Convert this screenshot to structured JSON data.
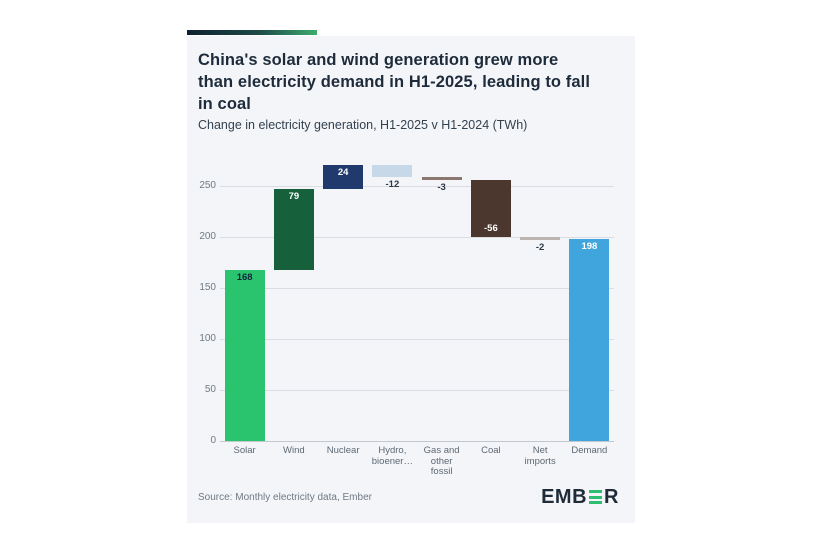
{
  "card": {
    "title_lines": [
      "China's solar and wind generation grew more",
      "than electricity demand in H1-2025, leading to fall",
      "in coal"
    ],
    "subtitle": "Change in electricity generation, H1-2025 v H1-2024 (TWh)",
    "source": "Source: Monthly electricity data, Ember",
    "logo": {
      "part1": "EMB",
      "part2": "R",
      "navy": "#1f2b39",
      "green": "#2dbe70"
    },
    "accent_gradient": [
      "#0f2030",
      "#3dab6e"
    ]
  },
  "chart_data": {
    "type": "bar",
    "subtype": "waterfall",
    "title": "China's solar and wind generation grew more than electricity demand in H1-2025, leading to fall in coal",
    "subtitle": "Change in electricity generation, H1-2025 v H1-2024 (TWh)",
    "xlabel": "",
    "ylabel": "TWh",
    "ylim": [
      0,
      280
    ],
    "grid": true,
    "y_ticks": [
      0,
      50,
      100,
      150,
      200,
      250
    ],
    "categories": [
      "Solar",
      "Wind",
      "Nuclear",
      "Hydro, bioener…",
      "Gas and other fossil",
      "Coal",
      "Net imports",
      "Demand"
    ],
    "values": [
      168,
      79,
      24,
      -12,
      -3,
      -56,
      -2,
      198
    ],
    "bars": [
      {
        "category_lines": [
          "Solar"
        ],
        "value": 168,
        "from": 0,
        "to": 168,
        "color": "#29c46d",
        "label": "168",
        "label_color": "#14243e",
        "label_pos": "inside-top"
      },
      {
        "category_lines": [
          "Wind"
        ],
        "value": 79,
        "from": 168,
        "to": 247,
        "color": "#16613b",
        "label": "79",
        "label_color": "#ffffff",
        "label_pos": "inside-top"
      },
      {
        "category_lines": [
          "Nuclear"
        ],
        "value": 24,
        "from": 247,
        "to": 271,
        "color": "#203a6d",
        "label": "24",
        "label_color": "#ffffff",
        "label_pos": "inside-top"
      },
      {
        "category_lines": [
          "Hydro,",
          "bioener…"
        ],
        "value": -12,
        "from": 271,
        "to": 259,
        "color": "#c7d9e9",
        "label": "-12",
        "label_color": "#2a3744",
        "label_pos": "below"
      },
      {
        "category_lines": [
          "Gas and",
          "other",
          "fossil"
        ],
        "value": -3,
        "from": 259,
        "to": 256,
        "color": "#8b7670",
        "label": "-3",
        "label_color": "#2a3744",
        "label_pos": "below"
      },
      {
        "category_lines": [
          "Coal"
        ],
        "value": -56,
        "from": 256,
        "to": 200,
        "color": "#4c372e",
        "label": "-56",
        "label_color": "#ffffff",
        "label_pos": "inside-bottom"
      },
      {
        "category_lines": [
          "Net",
          "imports"
        ],
        "value": -2,
        "from": 200,
        "to": 198,
        "color": "#bdb5b1",
        "label": "-2",
        "label_color": "#2a3744",
        "label_pos": "below"
      },
      {
        "category_lines": [
          "Demand"
        ],
        "value": 198,
        "from": 0,
        "to": 198,
        "color": "#3fa5dc",
        "label": "198",
        "label_color": "#ffffff",
        "label_pos": "inside-top"
      }
    ]
  }
}
